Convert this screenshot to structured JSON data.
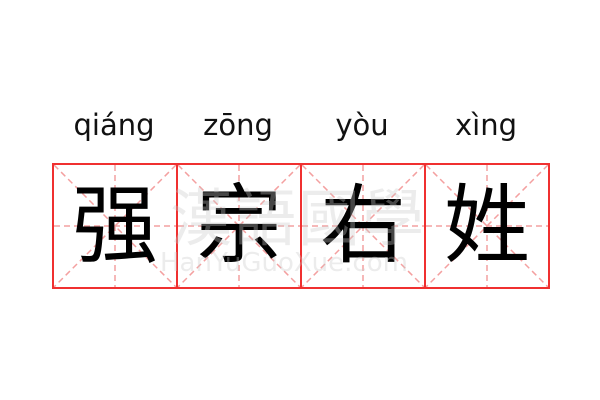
{
  "entries": [
    {
      "pinyin": "qiáng",
      "char": "强"
    },
    {
      "pinyin": "zōng",
      "char": "宗"
    },
    {
      "pinyin": "yòu",
      "char": "右"
    },
    {
      "pinyin": "xìng",
      "char": "姓"
    }
  ],
  "watermark": {
    "logo": "漢語國學",
    "url": "HanYuGuoXue.com"
  },
  "colors": {
    "border": "#f03030",
    "guide": "#f4a0a0"
  }
}
